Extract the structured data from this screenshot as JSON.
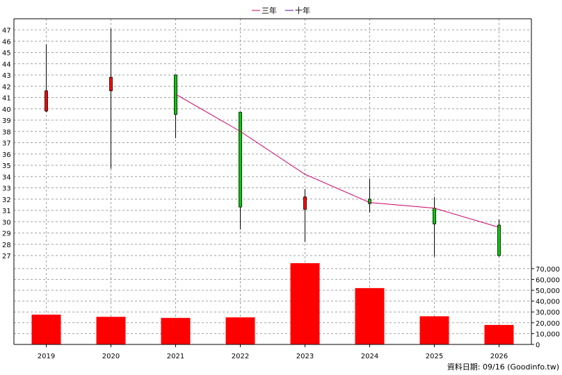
{
  "chart_data": {
    "type": "candlestick+bar",
    "legend": [
      {
        "label": "三年",
        "color": "#cc0066"
      },
      {
        "label": "十年",
        "color": "#660099"
      }
    ],
    "categories": [
      "2019",
      "2020",
      "2021",
      "2022",
      "2023",
      "2024",
      "2025",
      "2026"
    ],
    "price_axis": {
      "min": 27,
      "max": 47,
      "ticks": [
        "27",
        "28",
        "29",
        "30",
        "31",
        "32",
        "33",
        "34",
        "35",
        "36",
        "37",
        "38",
        "39",
        "40",
        "41",
        "42",
        "43",
        "44",
        "45",
        "46",
        "47"
      ]
    },
    "candles": [
      {
        "year": "2019",
        "open": 39.8,
        "close": 41.6,
        "high": 45.7,
        "low": 39.7,
        "up": true
      },
      {
        "year": "2020",
        "open": 41.6,
        "close": 42.8,
        "high": 47.1,
        "low": 34.7,
        "up": true
      },
      {
        "year": "2021",
        "open": 43.0,
        "close": 39.5,
        "high": 43.0,
        "low": 37.4,
        "up": false
      },
      {
        "year": "2022",
        "open": 39.7,
        "close": 31.3,
        "high": 39.7,
        "low": 29.3,
        "up": false
      },
      {
        "year": "2023",
        "open": 31.1,
        "close": 32.2,
        "high": 32.9,
        "low": 28.2,
        "up": true
      },
      {
        "year": "2024",
        "open": 32.0,
        "close": 31.6,
        "high": 33.8,
        "low": 30.8,
        "up": false
      },
      {
        "year": "2025",
        "open": 31.2,
        "close": 29.8,
        "high": 32.2,
        "low": 26.9,
        "up": false
      },
      {
        "year": "2026",
        "open": 29.7,
        "close": 27.0,
        "high": 30.2,
        "low": 26.9,
        "up": false
      }
    ],
    "three_year_line": {
      "name": "三年",
      "years": [
        "2021",
        "2022",
        "2023",
        "2024",
        "2025",
        "2026"
      ],
      "values": [
        41.3,
        38.0,
        34.2,
        31.7,
        31.2,
        29.5
      ]
    },
    "volume_axis": {
      "min": 0,
      "max": 75000,
      "ticks": [
        "0",
        "10,000",
        "20,000",
        "30,000",
        "40,000",
        "50,000",
        "60,000",
        "70,000"
      ],
      "tick_values": [
        0,
        10000,
        20000,
        30000,
        40000,
        50000,
        60000,
        70000
      ]
    },
    "volume": [
      27500,
      25500,
      24500,
      25000,
      76000,
      52000,
      26000,
      18000
    ],
    "colors": {
      "up": "#ff0000",
      "down": "#00cc00",
      "wick": "#000000",
      "volume": "#ff0000",
      "grid": "#a0a0a0"
    }
  },
  "footer": {
    "source": "資料日期: 09/16  (Goodinfo.tw)"
  }
}
